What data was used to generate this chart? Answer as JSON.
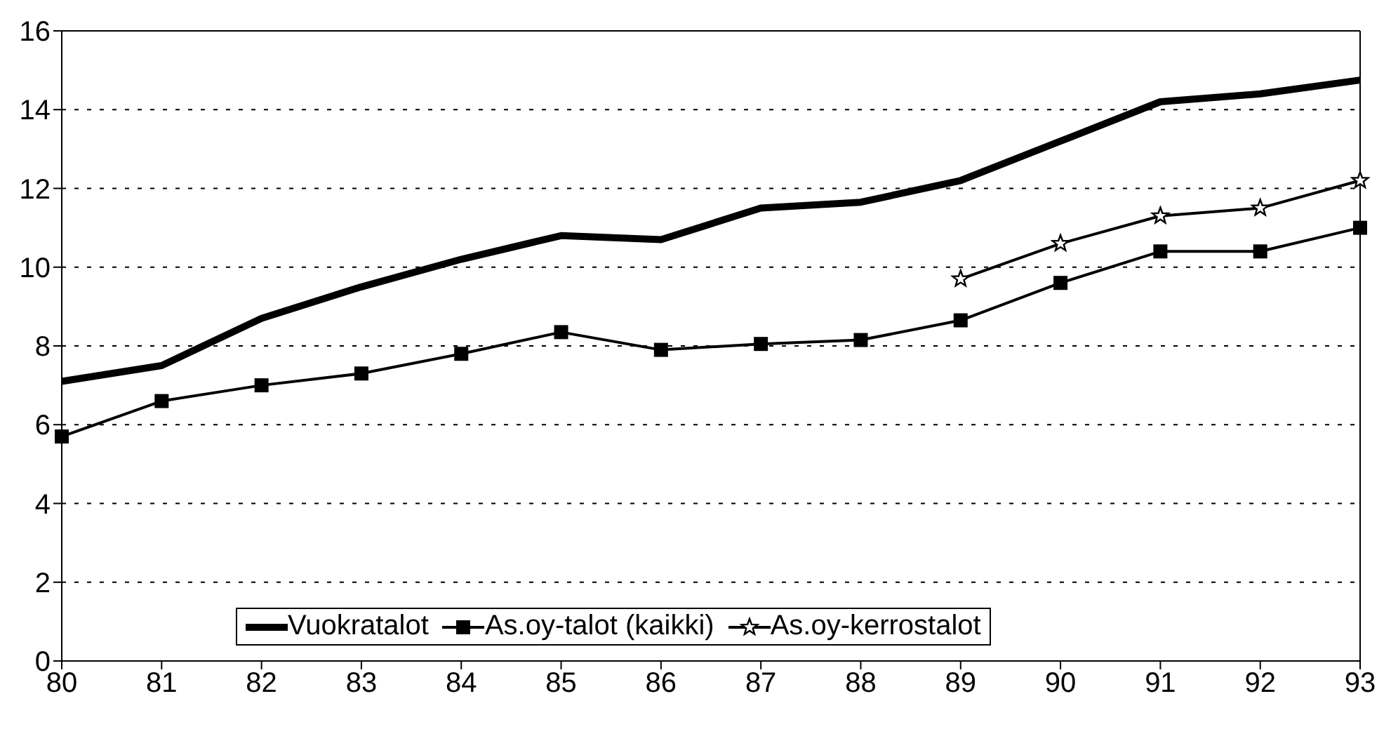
{
  "chart_data": {
    "type": "line",
    "categories": [
      "80",
      "81",
      "82",
      "83",
      "84",
      "85",
      "86",
      "87",
      "88",
      "89",
      "90",
      "91",
      "92",
      "93"
    ],
    "series": [
      {
        "name": "Vuokratalot",
        "color": "#000000",
        "marker": "none",
        "values": [
          7.1,
          7.5,
          8.7,
          9.5,
          10.2,
          10.8,
          10.7,
          11.5,
          11.65,
          12.2,
          13.2,
          14.2,
          14.4,
          14.75
        ]
      },
      {
        "name": "As.oy-talot (kaikki)",
        "color": "#000000",
        "marker": "square",
        "values": [
          5.7,
          6.6,
          7.0,
          7.3,
          7.8,
          8.35,
          7.9,
          8.05,
          8.15,
          8.65,
          9.6,
          10.4,
          10.4,
          11.0
        ]
      },
      {
        "name": "As.oy-kerrostalot",
        "color": "#000000",
        "marker": "star",
        "values": [
          null,
          null,
          null,
          null,
          null,
          null,
          null,
          null,
          null,
          9.7,
          10.6,
          11.3,
          11.5,
          12.2
        ]
      }
    ],
    "ylim": [
      0,
      16
    ],
    "yticks": [
      0,
      2,
      4,
      6,
      8,
      10,
      12,
      14,
      16
    ],
    "grid": "y",
    "legend": "bottom",
    "line_style": "solid"
  }
}
